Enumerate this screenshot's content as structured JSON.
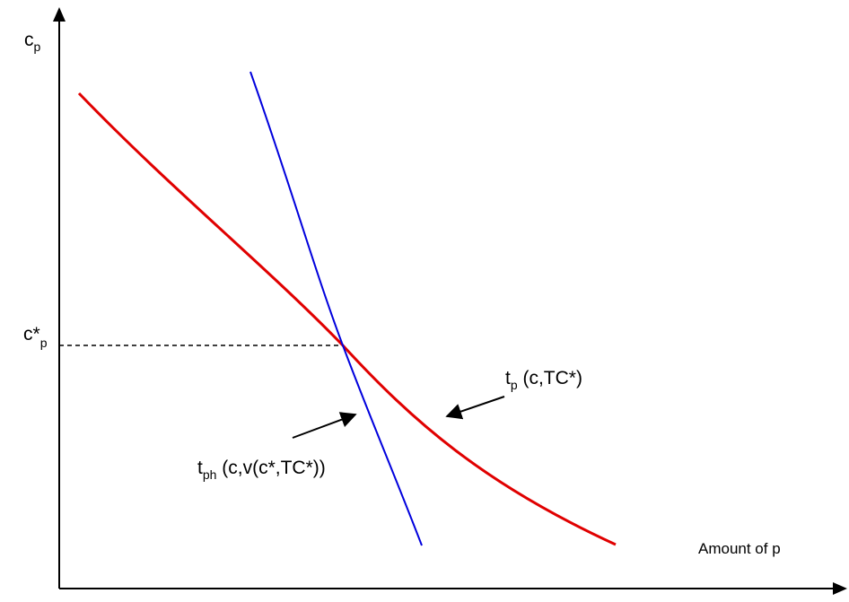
{
  "labels": {
    "y_axis": {
      "base": "c",
      "sub": "p"
    },
    "c_star": {
      "base": "c*",
      "sub": "p"
    },
    "x_axis": "Amount of p",
    "tp_label": {
      "base": "t",
      "sub": "p",
      "rest": " (c,TC*)"
    },
    "tph_label": {
      "base": "t",
      "sub": "ph",
      "rest": " (c,v(c*,TC*))"
    }
  },
  "colors": {
    "axis": "#000000",
    "curve_tp": "#e00000",
    "curve_tph": "#0000dd",
    "dashed": "#000000"
  }
}
